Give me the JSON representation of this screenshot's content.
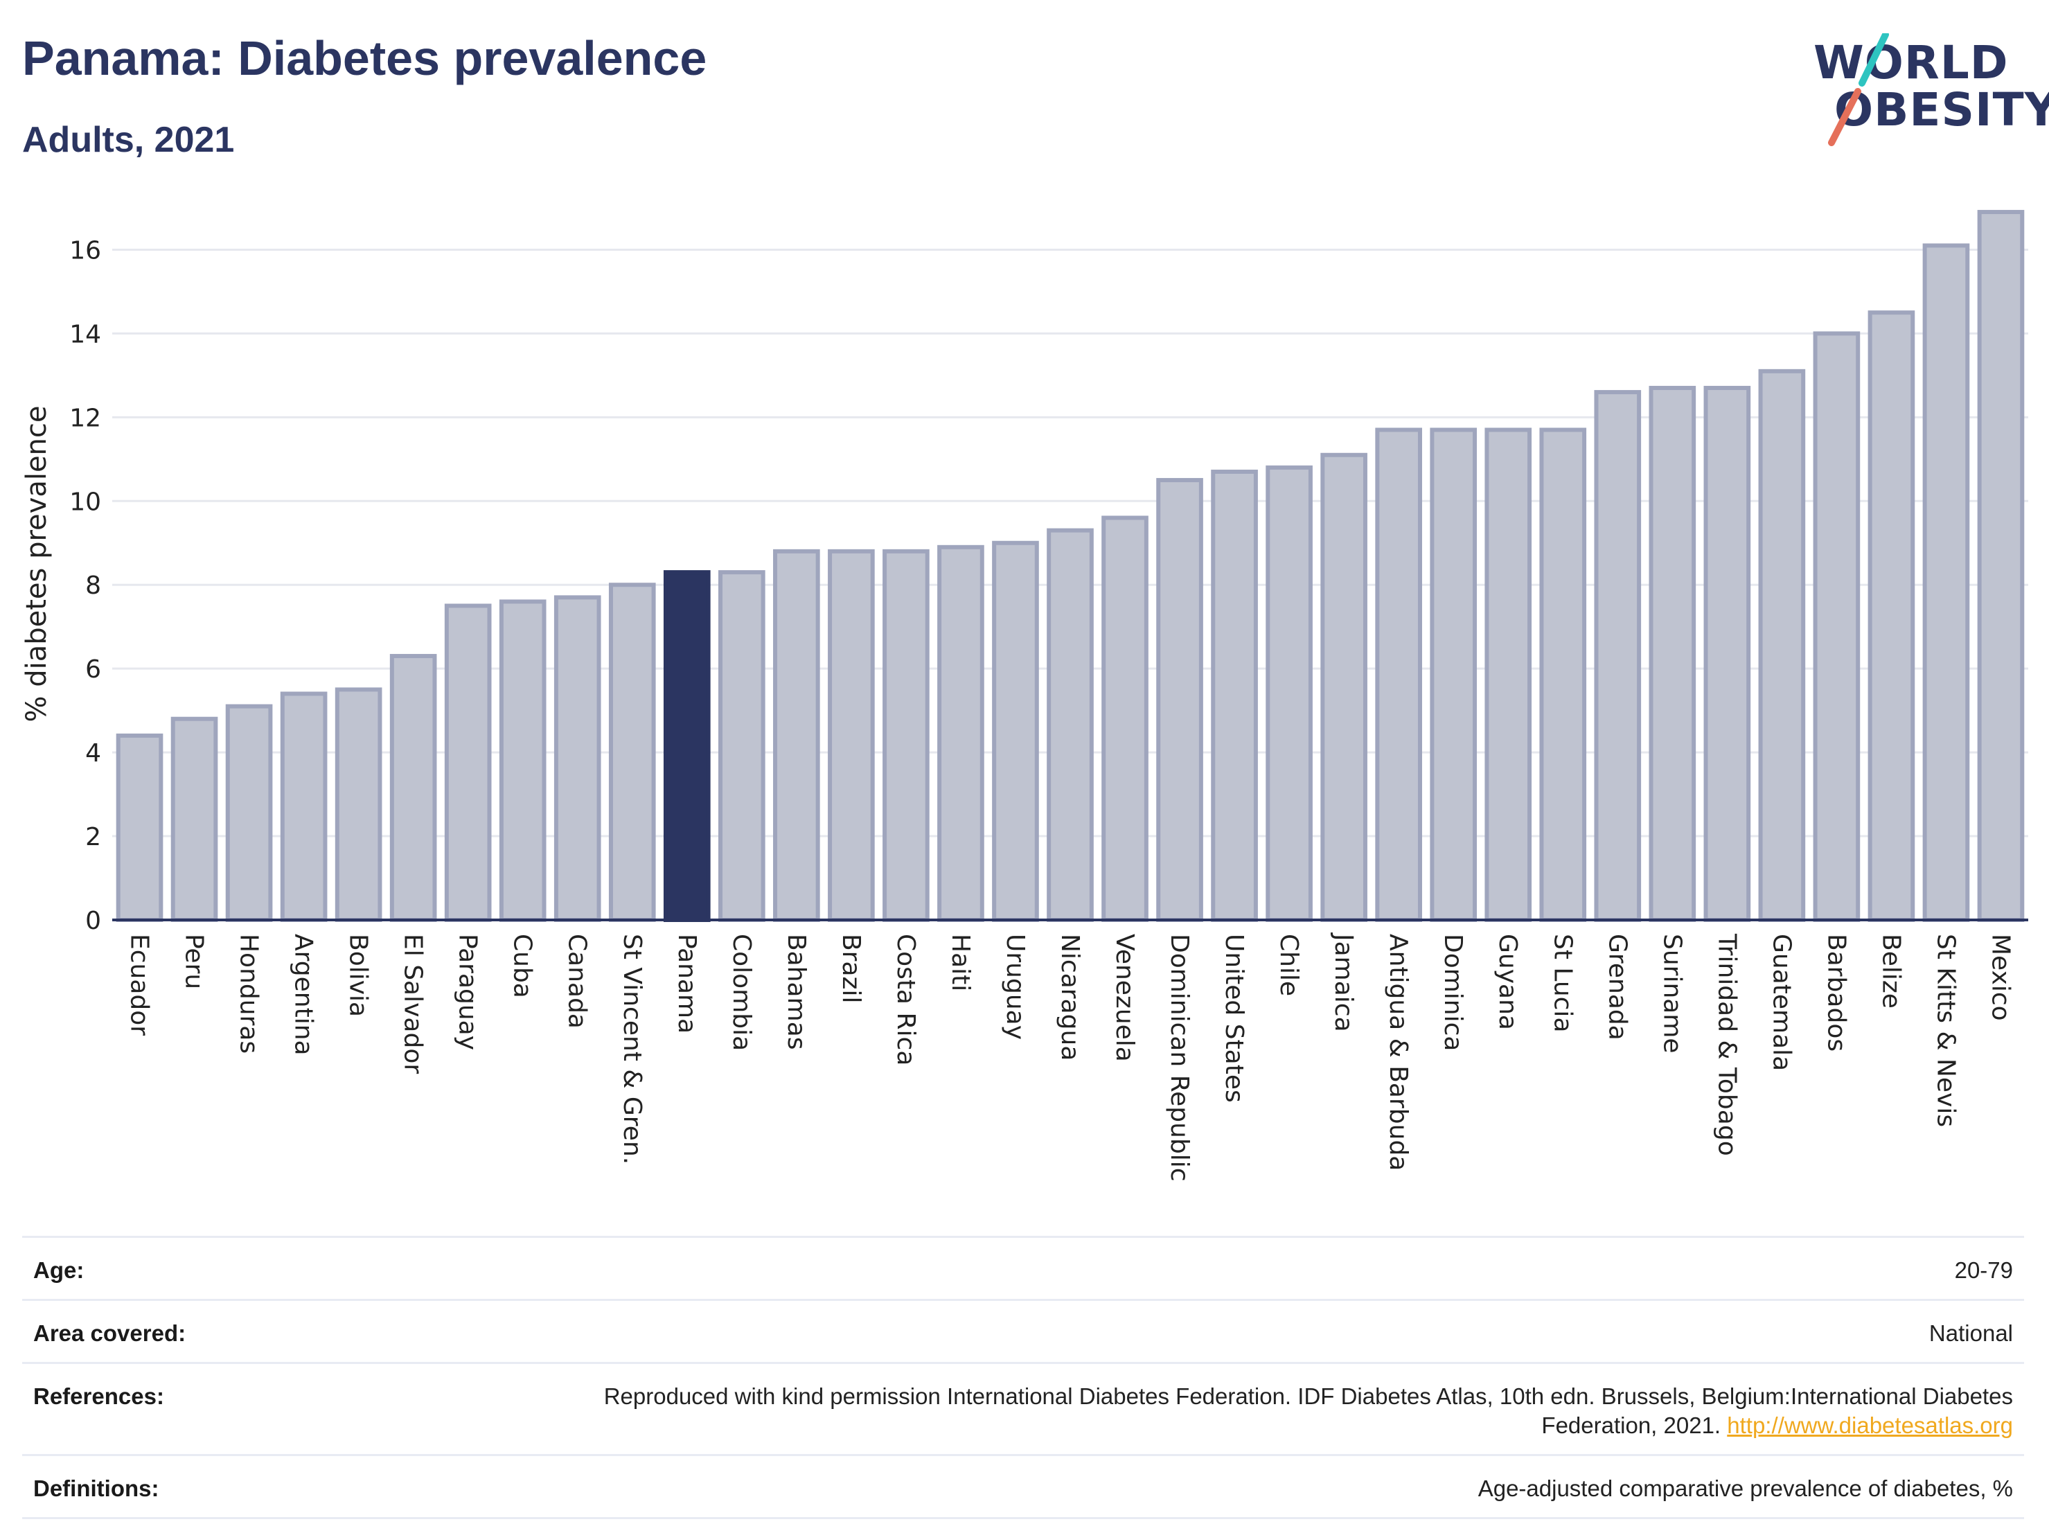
{
  "header": {
    "title": "Panama: Diabetes prevalence",
    "subtitle": "Adults, 2021"
  },
  "logo": {
    "line1": "WORLD",
    "line2": "OBESITY",
    "slash_colors": [
      "#2ec4c0",
      "#e5705a"
    ]
  },
  "colors": {
    "bar_fill": "#bfc3d0",
    "bar_stroke": "#9fa5bd",
    "highlight": "#2b3561",
    "grid": "#e6e8ee",
    "axis": "#2b3561"
  },
  "chart_data": {
    "type": "bar",
    "ylabel": "% diabetes prevalence",
    "ylim": [
      0,
      17
    ],
    "yticks": [
      0,
      2,
      4,
      6,
      8,
      10,
      12,
      14,
      16
    ],
    "grid": true,
    "highlight": "Panama",
    "categories": [
      "Ecuador",
      "Peru",
      "Honduras",
      "Argentina",
      "Bolivia",
      "El Salvador",
      "Paraguay",
      "Cuba",
      "Canada",
      "St Vincent & Gren.",
      "Panama",
      "Colombia",
      "Bahamas",
      "Brazil",
      "Costa Rica",
      "Haiti",
      "Uruguay",
      "Nicaragua",
      "Venezuela",
      "Dominican Republic",
      "United States",
      "Chile",
      "Jamaica",
      "Antigua & Barbuda",
      "Dominica",
      "Guyana",
      "St Lucia",
      "Grenada",
      "Suriname",
      "Trinidad & Tobago",
      "Guatemala",
      "Barbados",
      "Belize",
      "St Kitts & Nevis",
      "Mexico"
    ],
    "values": [
      4.4,
      4.8,
      5.1,
      5.4,
      5.5,
      6.3,
      7.5,
      7.6,
      7.7,
      8.0,
      8.3,
      8.3,
      8.8,
      8.8,
      8.8,
      8.9,
      9.0,
      9.3,
      9.6,
      10.5,
      10.7,
      10.8,
      11.1,
      11.7,
      11.7,
      11.7,
      11.7,
      12.6,
      12.7,
      12.7,
      13.1,
      14.0,
      14.5,
      16.1,
      16.9
    ]
  },
  "info": {
    "age_label": "Age:",
    "age_value": "20-79",
    "area_label": "Area covered:",
    "area_value": "National",
    "references_label": "References:",
    "references_text": "Reproduced with kind permission International Diabetes Federation.  IDF Diabetes Atlas, 10th edn. Brussels, Belgium:International Diabetes Federation, 2021. ",
    "references_link": "http://www.diabetesatlas.org",
    "definitions_label": "Definitions:",
    "definitions_value": "Age-adjusted comparative prevalence of diabetes, %"
  }
}
